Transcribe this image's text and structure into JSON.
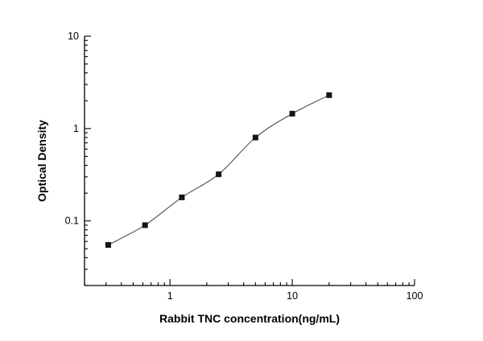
{
  "chart_data": {
    "type": "scatter",
    "title": "",
    "xlabel": "Rabbit TNC concentration(ng/mL)",
    "ylabel": "Optical Density",
    "x_scale": "log",
    "y_scale": "log",
    "xlim": [
      0.2,
      100
    ],
    "ylim": [
      0.02,
      10
    ],
    "x_major_ticks": [
      1,
      10,
      100
    ],
    "y_major_ticks": [
      0.1,
      1,
      10
    ],
    "x": [
      0.3125,
      0.625,
      1.25,
      2.5,
      5,
      10,
      20
    ],
    "y": [
      0.055,
      0.09,
      0.18,
      0.32,
      0.8,
      1.45,
      2.3
    ],
    "marker": "filled-square",
    "marker_color": "#141414",
    "line_color": "#4d4d4d",
    "axis_color": "#000000",
    "grid": false,
    "legend": false
  }
}
